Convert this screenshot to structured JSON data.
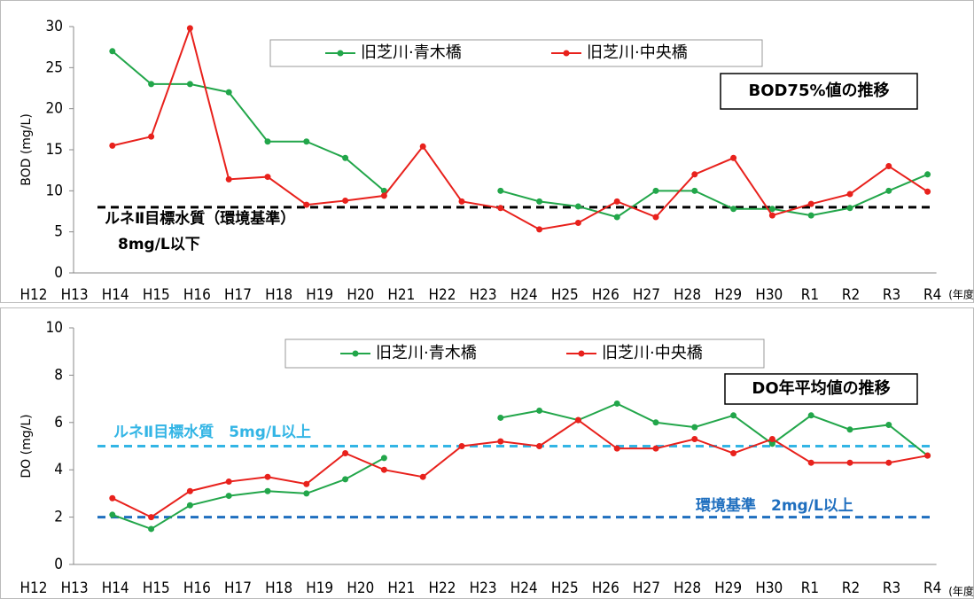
{
  "chart_data": [
    {
      "type": "line",
      "title": "BOD75%値の推移",
      "ylabel": "BOD (mg/L)",
      "xlabel": "(年度)",
      "categories": [
        "H12",
        "H13",
        "H14",
        "H15",
        "H16",
        "H17",
        "H18",
        "H19",
        "H20",
        "H21",
        "H22",
        "H23",
        "H24",
        "H25",
        "H26",
        "H27",
        "H28",
        "H29",
        "H30",
        "R1",
        "R2",
        "R3",
        "R4"
      ],
      "series": [
        {
          "name": "旧芝川·青木橋",
          "color": "#22a64a",
          "values": [
            null,
            27,
            23,
            23,
            22,
            16,
            16,
            14,
            10,
            null,
            null,
            10,
            8.7,
            8.1,
            6.8,
            10,
            10,
            7.8,
            7.8,
            7,
            7.9,
            10,
            12
          ]
        },
        {
          "name": "旧芝川·中央橋",
          "color": "#e8211c",
          "values": [
            null,
            15.5,
            16.6,
            29.8,
            11.4,
            11.7,
            8.3,
            8.8,
            9.4,
            15.4,
            8.7,
            7.9,
            5.3,
            6.1,
            8.7,
            6.8,
            12,
            14,
            7,
            8.4,
            9.6,
            13,
            9.9
          ]
        }
      ],
      "reference_lines": [
        {
          "value": 8,
          "color": "#000000",
          "labels": [
            "ルネⅡ目標水質（環境基準）",
            "8mg/L以下"
          ]
        }
      ],
      "ylim": [
        0,
        30
      ],
      "yticks": [
        0,
        5,
        10,
        15,
        20,
        25,
        30
      ]
    },
    {
      "type": "line",
      "title": "DO年平均値の推移",
      "ylabel": "DO (mg/L)",
      "xlabel": "(年度)",
      "categories": [
        "H12",
        "H13",
        "H14",
        "H15",
        "H16",
        "H17",
        "H18",
        "H19",
        "H20",
        "H21",
        "H22",
        "H23",
        "H24",
        "H25",
        "H26",
        "H27",
        "H28",
        "H29",
        "H30",
        "R1",
        "R2",
        "R3",
        "R4"
      ],
      "series": [
        {
          "name": "旧芝川·青木橋",
          "color": "#22a64a",
          "values": [
            null,
            2.1,
            1.5,
            2.5,
            2.9,
            3.1,
            3.0,
            3.6,
            4.5,
            null,
            null,
            6.2,
            6.5,
            6.1,
            6.8,
            6.0,
            5.8,
            6.3,
            5.1,
            6.3,
            5.7,
            5.9,
            4.6
          ]
        },
        {
          "name": "旧芝川·中央橋",
          "color": "#e8211c",
          "values": [
            null,
            2.8,
            2.0,
            3.1,
            3.5,
            3.7,
            3.4,
            4.7,
            4.0,
            3.7,
            5.0,
            5.2,
            5.0,
            6.1,
            4.9,
            4.9,
            5.3,
            4.7,
            5.3,
            4.3,
            4.3,
            4.3,
            4.6
          ]
        }
      ],
      "reference_lines": [
        {
          "value": 5,
          "color": "#33b5e5",
          "labels": [
            "ルネⅡ目標水質　5mg/L以上"
          ]
        },
        {
          "value": 2,
          "color": "#1f6fbf",
          "labels": [
            "環境基準　2mg/L以上"
          ]
        }
      ],
      "ylim": [
        0,
        10
      ],
      "yticks": [
        0,
        2,
        4,
        6,
        8,
        10
      ]
    }
  ]
}
